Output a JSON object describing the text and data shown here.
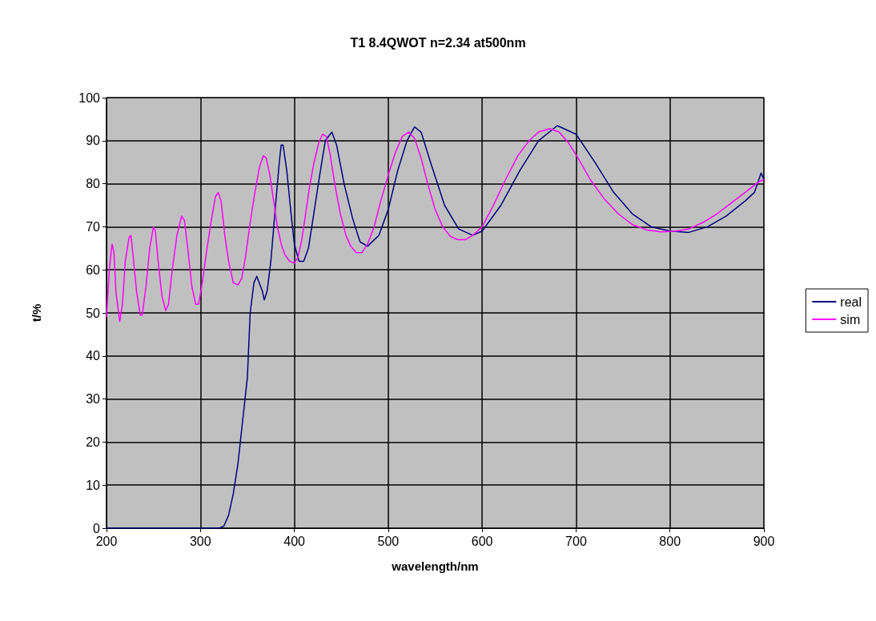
{
  "chart_data": {
    "type": "line",
    "title": "T1 8.4QWOT n=2.34 at500nm",
    "xlabel": "wavelength/nm",
    "ylabel": "t/%",
    "xlim": [
      200,
      900
    ],
    "xticks": [
      200,
      300,
      400,
      500,
      600,
      700,
      800,
      900
    ],
    "ylim": [
      0,
      100
    ],
    "yticks": [
      0,
      10,
      20,
      30,
      40,
      50,
      60,
      70,
      80,
      90,
      100
    ],
    "grid": true,
    "legend": "right",
    "marker": "none",
    "line_style": "solid",
    "series": [
      {
        "name": "real",
        "color": "#000080",
        "x": [
          200,
          250,
          300,
          320,
          325,
          330,
          335,
          340,
          345,
          350,
          353,
          357,
          360,
          366,
          368,
          371,
          375,
          380,
          384,
          386,
          388,
          392,
          397,
          400,
          405,
          410,
          415,
          420,
          427,
          433,
          440,
          445,
          453,
          462,
          470,
          478,
          490,
          500,
          510,
          520,
          528,
          535,
          545,
          560,
          575,
          590,
          600,
          620,
          640,
          660,
          680,
          700,
          720,
          740,
          760,
          780,
          800,
          820,
          840,
          860,
          880,
          890,
          897,
          900
        ],
        "values": [
          0,
          0,
          0,
          0,
          0.5,
          3,
          8,
          15,
          25,
          35,
          50,
          57,
          58.5,
          55,
          53,
          55,
          62,
          75,
          85,
          89,
          89,
          83,
          72,
          66,
          62,
          62,
          65,
          72,
          82,
          90,
          92,
          89,
          80,
          72,
          66.5,
          65.5,
          68,
          74,
          83,
          90,
          93.2,
          92,
          85,
          75,
          69.5,
          68,
          69,
          75,
          83,
          90,
          93.5,
          91.5,
          85,
          78,
          73,
          70,
          69,
          68.7,
          70,
          72.5,
          76,
          78,
          82.5,
          81
        ]
      },
      {
        "name": "sim",
        "color": "#ff00ff",
        "x": [
          200,
          203,
          206,
          208,
          210,
          214,
          217,
          220,
          224,
          226,
          228,
          232,
          236,
          238,
          242,
          246,
          250,
          252,
          255,
          259,
          263,
          266,
          270,
          275,
          280,
          283,
          287,
          291,
          295,
          298,
          302,
          307,
          312,
          316,
          319,
          322,
          326,
          330,
          335,
          340,
          344,
          348,
          353,
          358,
          363,
          367,
          370,
          374,
          378,
          382,
          386,
          390,
          395,
          400,
          404,
          408,
          412,
          416,
          421,
          426,
          430,
          434,
          438,
          443,
          449,
          455,
          460,
          466,
          472,
          478,
          485,
          492,
          500,
          508,
          515,
          522,
          528,
          535,
          542,
          550,
          558,
          566,
          574,
          582,
          590,
          600,
          612,
          625,
          638,
          650,
          660,
          672,
          682,
          692,
          702,
          715,
          730,
          745,
          760,
          775,
          790,
          808,
          820,
          835,
          850,
          865,
          880,
          895,
          900
        ],
        "values": [
          49,
          60,
          66,
          64,
          55,
          48,
          52,
          62,
          67.5,
          68,
          64,
          55,
          49.5,
          49.5,
          56,
          65,
          70,
          69,
          62,
          54,
          50.5,
          52,
          60,
          68,
          72.5,
          71.5,
          64,
          56,
          52,
          52,
          57,
          65,
          72,
          77,
          78,
          76,
          68,
          62,
          57,
          56.5,
          58,
          63,
          71,
          78,
          84,
          86.5,
          86,
          82,
          76,
          70,
          66,
          63.5,
          62,
          61.5,
          63,
          67,
          73,
          79,
          85,
          89.5,
          91.5,
          91,
          87,
          80,
          73,
          68,
          65.5,
          64,
          64,
          66,
          70,
          76,
          82,
          87.5,
          91,
          92,
          90.5,
          86,
          80,
          74,
          70,
          67.8,
          67,
          67,
          68,
          70,
          75,
          81,
          86.5,
          90,
          92,
          92.8,
          92,
          89.5,
          86,
          81,
          76.5,
          73,
          70.5,
          69.3,
          68.8,
          69,
          69.5,
          71,
          73,
          75.5,
          78,
          80.5,
          81
        ]
      }
    ]
  }
}
